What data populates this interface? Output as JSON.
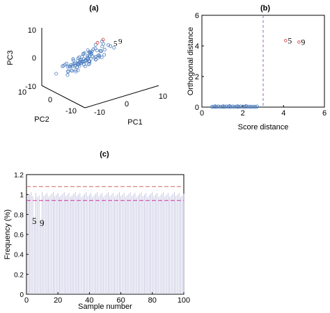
{
  "chart_data": [
    {
      "type": "scatter",
      "panel_label": "(a)",
      "projection": "3d",
      "axis_labels": {
        "x": "PC1",
        "y": "PC2",
        "z": "PC3"
      },
      "ticks": {
        "x": [
          "-10",
          "0",
          "10"
        ],
        "y": [
          "-10",
          "0",
          "10"
        ],
        "z": [
          "-10",
          "0",
          "10"
        ]
      },
      "marker_color": "#4f7fbf",
      "annotations": [
        {
          "text": "5",
          "x": 4,
          "y": 1,
          "z": 4
        },
        {
          "text": "9",
          "x": 5.5,
          "y": 1,
          "z": 4.5
        }
      ]
    },
    {
      "type": "scatter",
      "panel_label": "(b)",
      "xlabel": "Score distance",
      "ylabel": "Orthogonal distance",
      "xlim": [
        0,
        6
      ],
      "ylim": [
        0,
        6
      ],
      "xticks": [
        "0",
        "2",
        "4",
        "6"
      ],
      "yticks": [
        "0",
        "2",
        "4",
        "6"
      ],
      "cutoff_x": 3,
      "points": [
        {
          "x": 0.5,
          "y": 0.02
        },
        {
          "x": 0.6,
          "y": 0.03
        },
        {
          "x": 0.7,
          "y": 0.02
        },
        {
          "x": 0.8,
          "y": 0.04
        },
        {
          "x": 0.9,
          "y": 0.02
        },
        {
          "x": 1.0,
          "y": 0.03
        },
        {
          "x": 1.1,
          "y": 0.02
        },
        {
          "x": 1.2,
          "y": 0.04
        },
        {
          "x": 1.3,
          "y": 0.03
        },
        {
          "x": 1.4,
          "y": 0.02
        },
        {
          "x": 1.5,
          "y": 0.04
        },
        {
          "x": 1.6,
          "y": 0.02
        },
        {
          "x": 1.7,
          "y": 0.03
        },
        {
          "x": 1.8,
          "y": 0.02
        },
        {
          "x": 1.9,
          "y": 0.04
        },
        {
          "x": 2.0,
          "y": 0.03
        },
        {
          "x": 2.1,
          "y": 0.02
        },
        {
          "x": 2.2,
          "y": 0.04
        },
        {
          "x": 2.3,
          "y": 0.03
        },
        {
          "x": 2.4,
          "y": 0.02
        },
        {
          "x": 2.5,
          "y": 0.03
        },
        {
          "x": 2.6,
          "y": 0.02
        },
        {
          "x": 2.7,
          "y": 0.04
        },
        {
          "x": 1.05,
          "y": 0.05
        },
        {
          "x": 1.35,
          "y": 0.06
        },
        {
          "x": 1.75,
          "y": 0.05
        },
        {
          "x": 2.15,
          "y": 0.06
        },
        {
          "x": 0.65,
          "y": 0.05
        }
      ],
      "outliers": [
        {
          "label": "5",
          "x": 4.1,
          "y": 4.35
        },
        {
          "label": "9",
          "x": 4.75,
          "y": 4.25
        }
      ],
      "marker_color": "#4f7fbf",
      "outlier_color": "#cc3333"
    },
    {
      "type": "bar",
      "panel_label": "(c)",
      "xlabel": "Sample number",
      "ylabel": "Frequency (%)",
      "xlim": [
        0,
        100
      ],
      "ylim": [
        0,
        1.2
      ],
      "xticks": [
        "0",
        "20",
        "40",
        "60",
        "80",
        "100"
      ],
      "yticks": [
        "0",
        "0.2",
        "0.4",
        "0.6",
        "0.8",
        "1",
        "1.2"
      ],
      "upper_limit": 1.08,
      "lower_limit": 0.94,
      "annotations": [
        {
          "text": "5",
          "x": 5,
          "y": 0.72
        },
        {
          "text": "9",
          "x": 9,
          "y": 0.7
        }
      ],
      "bar_color": "#b8b8dc",
      "limit_color_upper": "#cc6666",
      "limit_color_lower": "#cc3399"
    }
  ]
}
